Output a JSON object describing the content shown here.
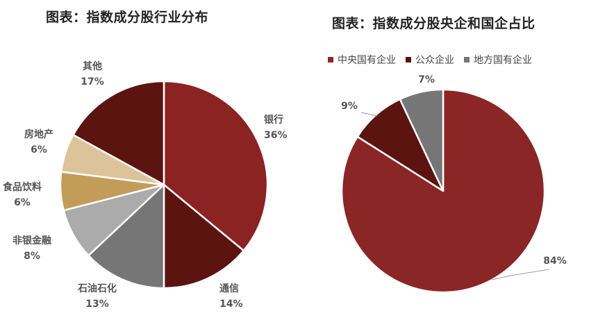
{
  "chart_data": [
    {
      "type": "pie",
      "title": "图表：指数成分股行业分布",
      "slices": [
        {
          "label": "银行",
          "value": 36,
          "value_label": "36%",
          "color": "#8B2323"
        },
        {
          "label": "通信",
          "value": 14,
          "value_label": "14%",
          "color": "#5C1410"
        },
        {
          "label": "石油石化",
          "value": 13,
          "value_label": "13%",
          "color": "#767676"
        },
        {
          "label": "非银金融",
          "value": 8,
          "value_label": "8%",
          "color": "#ABABAB"
        },
        {
          "label": "食品饮料",
          "value": 6,
          "value_label": "6%",
          "color": "#C49C5A"
        },
        {
          "label": "房地产",
          "value": 6,
          "value_label": "6%",
          "color": "#DCC39A"
        },
        {
          "label": "其他",
          "value": 17,
          "value_label": "17%",
          "color": "#5C1410"
        }
      ]
    },
    {
      "type": "pie",
      "title": "图表：指数成分股央企和国企占比",
      "legend_position": "top",
      "slices": [
        {
          "label": "中央国有企业",
          "value": 84,
          "value_label": "84%",
          "color": "#8B2626"
        },
        {
          "label": "公众企业",
          "value": 9,
          "value_label": "9%",
          "color": "#5C1410"
        },
        {
          "label": "地方国有企业",
          "value": 7,
          "value_label": "7%",
          "color": "#767676"
        }
      ]
    }
  ]
}
